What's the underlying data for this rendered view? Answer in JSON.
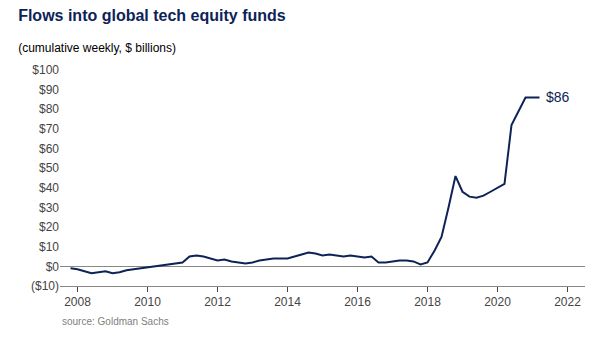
{
  "chart_data": {
    "type": "line",
    "title": "Flows into global tech equity funds",
    "subtitle": "(cumulative weekly, $ billions)",
    "source": "source: Goldman Sachs",
    "annotation": "$86",
    "color": "#0d2357",
    "grid": false,
    "ylim": [
      -10,
      100
    ],
    "xlim": [
      2007.5,
      2022.5
    ],
    "yticks": [
      {
        "value": -10,
        "label": "($10)"
      },
      {
        "value": 0,
        "label": "$0"
      },
      {
        "value": 10,
        "label": "$10"
      },
      {
        "value": 20,
        "label": "$20"
      },
      {
        "value": 30,
        "label": "$30"
      },
      {
        "value": 40,
        "label": "$40"
      },
      {
        "value": 50,
        "label": "$50"
      },
      {
        "value": 60,
        "label": "$60"
      },
      {
        "value": 70,
        "label": "$70"
      },
      {
        "value": 80,
        "label": "$80"
      },
      {
        "value": 90,
        "label": "$90"
      },
      {
        "value": 100,
        "label": "$100"
      }
    ],
    "xticks": [
      2008,
      2010,
      2012,
      2014,
      2016,
      2018,
      2020,
      2022
    ],
    "x": [
      2007.8,
      2008.0,
      2008.2,
      2008.4,
      2008.6,
      2008.8,
      2009.0,
      2009.2,
      2009.4,
      2009.6,
      2009.8,
      2010.0,
      2010.2,
      2010.4,
      2010.6,
      2010.8,
      2011.0,
      2011.2,
      2011.4,
      2011.6,
      2011.8,
      2012.0,
      2012.2,
      2012.4,
      2012.6,
      2012.8,
      2013.0,
      2013.2,
      2013.4,
      2013.6,
      2013.8,
      2014.0,
      2014.2,
      2014.4,
      2014.6,
      2014.8,
      2015.0,
      2015.2,
      2015.4,
      2015.6,
      2015.8,
      2016.0,
      2016.2,
      2016.4,
      2016.6,
      2016.8,
      2017.0,
      2017.2,
      2017.4,
      2017.6,
      2017.8,
      2018.0,
      2018.2,
      2018.4,
      2018.6,
      2018.8,
      2019.0,
      2019.2,
      2019.4,
      2019.6,
      2019.8,
      2020.0,
      2020.2,
      2020.4,
      2020.6,
      2020.8,
      2021.0,
      2021.2
    ],
    "values": [
      -1.0,
      -1.5,
      -2.5,
      -3.5,
      -3.0,
      -2.5,
      -3.5,
      -3.0,
      -2.0,
      -1.5,
      -1.0,
      -0.5,
      0.0,
      0.5,
      1.0,
      1.5,
      2.0,
      5.0,
      5.5,
      5.0,
      4.0,
      3.0,
      3.5,
      2.5,
      2.0,
      1.5,
      2.0,
      3.0,
      3.5,
      4.0,
      4.0,
      4.0,
      5.0,
      6.0,
      7.0,
      6.5,
      5.5,
      6.0,
      5.5,
      5.0,
      5.5,
      5.0,
      4.5,
      5.0,
      2.0,
      2.0,
      2.5,
      3.0,
      3.0,
      2.5,
      1.0,
      2.0,
      8.0,
      15.0,
      30.0,
      46.0,
      38.0,
      35.5,
      35.0,
      36.0,
      38.0,
      40.0,
      42.0,
      72.0,
      79.0,
      86.0,
      86.0,
      86.0
    ]
  }
}
